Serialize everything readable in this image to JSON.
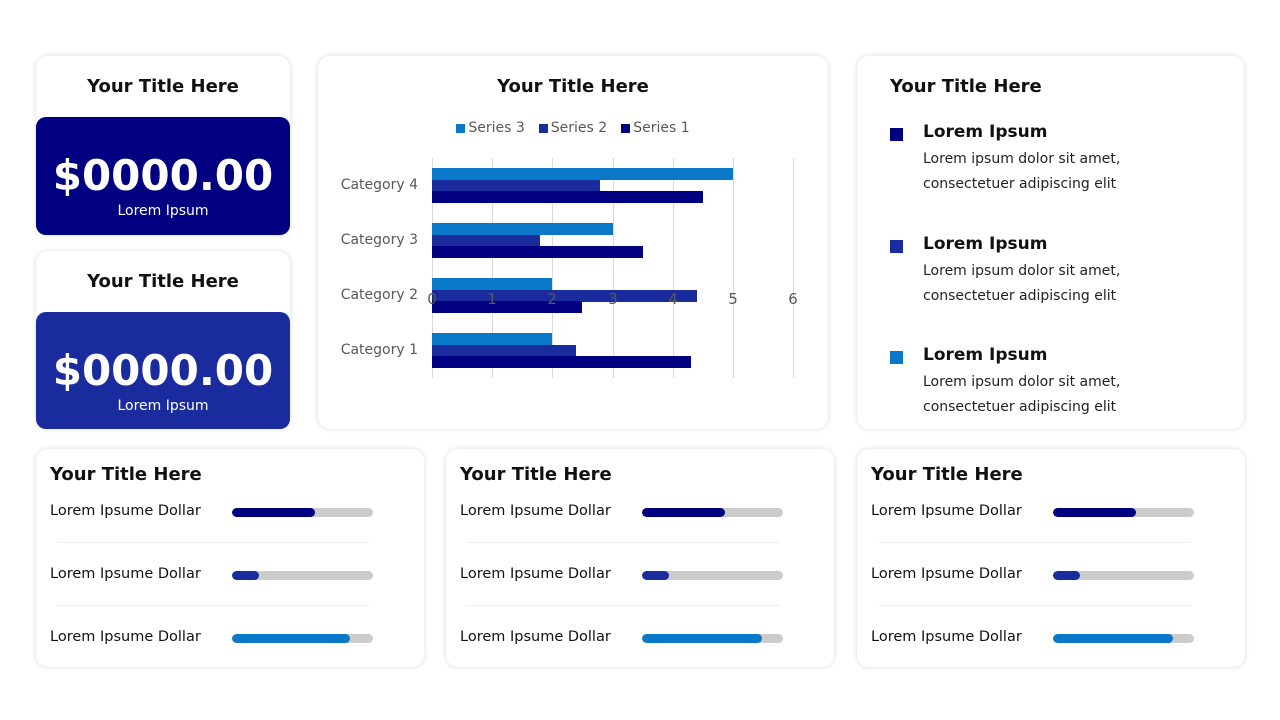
{
  "colors": {
    "series1": "#000080",
    "series2": "#1a2b9e",
    "series3": "#0a78c8",
    "track": "#cccccc",
    "kpi1_bg": "#000080",
    "kpi2_bg": "#1a2b9e"
  },
  "kpi_cards": [
    {
      "title": "Your Title Here",
      "value": "$0000.00",
      "label": "Lorem Ipsum"
    },
    {
      "title": "Your Title Here",
      "value": "$0000.00",
      "label": "Lorem Ipsum"
    }
  ],
  "chart_card": {
    "title": "Your Title Here",
    "legend": [
      "Series 3",
      "Series 2",
      "Series 1"
    ]
  },
  "chart_data": {
    "type": "bar",
    "orientation": "horizontal",
    "title": "Your Title Here",
    "categories": [
      "Category 1",
      "Category 2",
      "Category 3",
      "Category 4"
    ],
    "series": [
      {
        "name": "Series 1",
        "color": "#000080",
        "values": [
          4.3,
          2.5,
          3.5,
          4.5
        ]
      },
      {
        "name": "Series 2",
        "color": "#1a2b9e",
        "values": [
          2.4,
          4.4,
          1.8,
          2.8
        ]
      },
      {
        "name": "Series 3",
        "color": "#0a78c8",
        "values": [
          2,
          2,
          3,
          5
        ]
      }
    ],
    "xlabel": "",
    "ylabel": "",
    "xlim": [
      0,
      6
    ],
    "xticks": [
      "0",
      "1",
      "2",
      "3",
      "4",
      "5",
      "6"
    ],
    "grid": "vertical",
    "legend_position": "top"
  },
  "bullet_card": {
    "title": "Your Title Here",
    "items": [
      {
        "heading": "Lorem Ipsum",
        "line1": "Lorem ipsum dolor sit amet,",
        "line2": "consectetuer adipiscing elit"
      },
      {
        "heading": "Lorem Ipsum",
        "line1": "Lorem ipsum dolor sit amet,",
        "line2": "consectetuer adipiscing elit"
      },
      {
        "heading": "Lorem Ipsum",
        "line1": "Lorem ipsum dolor sit amet,",
        "line2": "consectetuer adipiscing elit"
      }
    ]
  },
  "progress_cards": [
    {
      "title": "Your Title Here",
      "rows": [
        {
          "label": "Lorem Ipsume Dollar",
          "percent": 59
        },
        {
          "label": "Lorem Ipsume Dollar",
          "percent": 19
        },
        {
          "label": "Lorem Ipsume Dollar",
          "percent": 84
        }
      ]
    },
    {
      "title": "Your Title Here",
      "rows": [
        {
          "label": "Lorem Ipsume Dollar",
          "percent": 59
        },
        {
          "label": "Lorem Ipsume Dollar",
          "percent": 19
        },
        {
          "label": "Lorem Ipsume Dollar",
          "percent": 85
        }
      ]
    },
    {
      "title": "Your Title Here",
      "rows": [
        {
          "label": "Lorem Ipsume Dollar",
          "percent": 59
        },
        {
          "label": "Lorem Ipsume Dollar",
          "percent": 19
        },
        {
          "label": "Lorem Ipsume Dollar",
          "percent": 85
        }
      ]
    }
  ]
}
